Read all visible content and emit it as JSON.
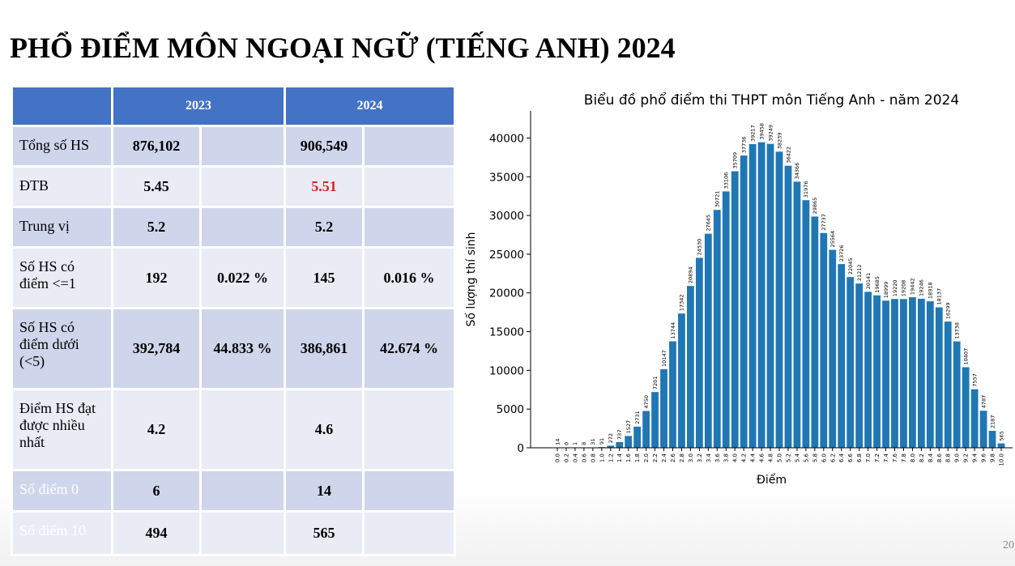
{
  "title": "PHỔ ĐIỂM MÔN NGOẠI NGỮ (TIẾNG ANH) 2024",
  "page_number": "20",
  "table": {
    "headers": [
      "2023",
      "2024"
    ],
    "rows": [
      {
        "label": "Tổng số HS",
        "v2023": "876,102",
        "v2024": "906,549"
      },
      {
        "label": "ĐTB",
        "v2023": "5.45",
        "v2024": "5.51",
        "v2024_color": "#e02020"
      },
      {
        "label": "Trung vị",
        "v2023": "5.2",
        "v2024": "5.2"
      },
      {
        "label": "Số HS có điểm <=1",
        "v2023": "192",
        "pct2023": "0.022 %",
        "v2024": "145",
        "pct2024": "0.016 %"
      },
      {
        "label": "Số HS có điểm dưới (<5)",
        "v2023": "392,784",
        "pct2023": "44.833 %",
        "v2024": "386,861",
        "pct2024": "42.674 %"
      },
      {
        "label": "Điểm HS đạt được nhiều nhất",
        "v2023": "4.2",
        "v2024": "4.6"
      },
      {
        "label": "Số điểm 0",
        "v2023": "6",
        "v2024": "14",
        "label_color": "#ffffff"
      },
      {
        "label": "Số điểm 10",
        "v2023": "494",
        "v2024": "565",
        "label_color": "#ffffff"
      }
    ]
  },
  "chart_data": {
    "type": "bar",
    "title": "Biểu đồ phổ điểm thi THPT môn Tiếng Anh - năm 2024",
    "x_label": "Điểm",
    "y_label": "Số lượng thí sinh",
    "categories": [
      "0.0",
      "0.2",
      "0.4",
      "0.6",
      "0.8",
      "1.0",
      "1.2",
      "1.4",
      "1.6",
      "1.8",
      "2.0",
      "2.2",
      "2.4",
      "2.6",
      "2.8",
      "3.0",
      "3.2",
      "3.4",
      "3.6",
      "3.8",
      "4.0",
      "4.2",
      "4.4",
      "4.6",
      "4.8",
      "5.0",
      "5.2",
      "5.4",
      "5.6",
      "5.8",
      "6.0",
      "6.2",
      "6.4",
      "6.6",
      "6.8",
      "7.0",
      "7.2",
      "7.4",
      "7.6",
      "7.8",
      "8.0",
      "8.2",
      "8.4",
      "8.6",
      "8.8",
      "9.0",
      "9.2",
      "9.4",
      "9.6",
      "9.8",
      "10.0"
    ],
    "values": [
      14,
      0,
      1,
      8,
      31,
      91,
      272,
      737,
      1527,
      2731,
      4750,
      7201,
      10147,
      13744,
      17342,
      20894,
      24530,
      27645,
      30721,
      33106,
      35709,
      37736,
      39217,
      39458,
      39249,
      38239,
      36422,
      34366,
      31976,
      29865,
      27737,
      25564,
      23726,
      22045,
      21212,
      20141,
      19685,
      18999,
      19220,
      19208,
      19442,
      19246,
      18918,
      18137,
      16299,
      13738,
      10407,
      7557,
      4787,
      2187,
      565
    ],
    "color": "#1f77b4",
    "ylim": [
      0,
      43500
    ],
    "yticks": [
      0,
      5000,
      10000,
      15000,
      20000,
      25000,
      30000,
      35000,
      40000
    ],
    "grid": false
  }
}
